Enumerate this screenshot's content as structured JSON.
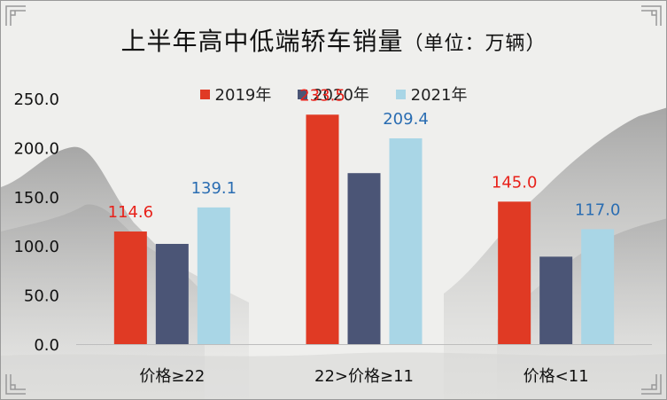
{
  "title": "上半年高中低端轿车销量",
  "title_unit": "（单位：万辆）",
  "colors": {
    "2019年": "#e03a24",
    "2020年": "#4b5576",
    "2021年": "#a9d6e6",
    "label_2019": "#e8211a",
    "label_2021": "#2a6db2"
  },
  "chart_data": {
    "type": "bar",
    "categories": [
      "价格≥22",
      "22>价格≥11",
      "价格<11"
    ],
    "series": [
      {
        "name": "2019年",
        "values": [
          114.6,
          233.5,
          145.0
        ],
        "labels": [
          "114.6",
          "233.5",
          "145.0"
        ]
      },
      {
        "name": "2020年",
        "values": [
          102,
          174,
          89
        ],
        "labels": [
          null,
          null,
          null
        ]
      },
      {
        "name": "2021年",
        "values": [
          139.1,
          209.4,
          117.0
        ],
        "labels": [
          "139.1",
          "209.4",
          "117.0"
        ]
      }
    ],
    "ylim": [
      0,
      250
    ],
    "yticks": [
      "0.0",
      "50.0",
      "100.0",
      "150.0",
      "200.0",
      "250.0"
    ],
    "legend_position": "top"
  }
}
